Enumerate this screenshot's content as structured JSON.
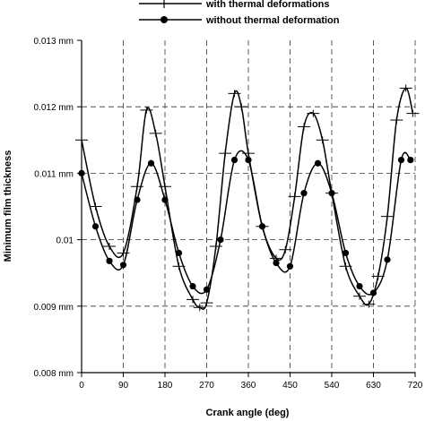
{
  "chart_data": {
    "type": "line",
    "title": "",
    "xlabel": "Crank angle (deg)",
    "ylabel": "Minimum film thickness",
    "xlim": [
      0,
      720
    ],
    "ylim": [
      0.008,
      0.013
    ],
    "x_ticks": [
      0,
      90,
      180,
      270,
      360,
      450,
      540,
      630,
      720
    ],
    "x_tick_labels": [
      "0",
      "90",
      "180",
      "270",
      "360",
      "450",
      "540",
      "630",
      "720"
    ],
    "y_ticks": [
      0.008,
      0.009,
      0.01,
      0.011,
      0.012,
      0.013
    ],
    "y_tick_labels": [
      "0.008 mm",
      "0.009 mm",
      "0.01",
      "0.011 mm",
      "0.012 mm",
      "0.013 mm"
    ],
    "grid": "dashed",
    "legend_position": "top",
    "series": [
      {
        "name": "with thermal deformations",
        "marker": "plus",
        "color": "#000000",
        "x": [
          0,
          30,
          60,
          90,
          120,
          140,
          160,
          180,
          210,
          240,
          255,
          270,
          290,
          310,
          330,
          345,
          360,
          390,
          420,
          440,
          460,
          480,
          500,
          520,
          540,
          570,
          600,
          620,
          640,
          660,
          680,
          700,
          715
        ],
        "y": [
          0.0115,
          0.0105,
          0.0099,
          0.0098,
          0.0108,
          0.01195,
          0.0116,
          0.0108,
          0.0096,
          0.0091,
          0.00898,
          0.00905,
          0.0099,
          0.0113,
          0.0122,
          0.012,
          0.0113,
          0.0102,
          0.00972,
          0.00985,
          0.01065,
          0.0117,
          0.0119,
          0.0115,
          0.0107,
          0.0096,
          0.00915,
          0.00903,
          0.00945,
          0.01035,
          0.0118,
          0.01228,
          0.0119
        ]
      },
      {
        "name": "without thermal deformation",
        "marker": "circle",
        "color": "#000000",
        "x": [
          0,
          30,
          60,
          90,
          120,
          150,
          180,
          210,
          240,
          270,
          300,
          330,
          360,
          390,
          420,
          450,
          480,
          510,
          540,
          570,
          600,
          630,
          660,
          690,
          710
        ],
        "y": [
          0.011,
          0.0102,
          0.00968,
          0.00962,
          0.0106,
          0.01115,
          0.0106,
          0.0098,
          0.0093,
          0.00925,
          0.01,
          0.0112,
          0.0112,
          0.0102,
          0.00965,
          0.0096,
          0.0107,
          0.01115,
          0.0107,
          0.0098,
          0.0093,
          0.0092,
          0.0097,
          0.0112,
          0.0112
        ]
      }
    ]
  }
}
